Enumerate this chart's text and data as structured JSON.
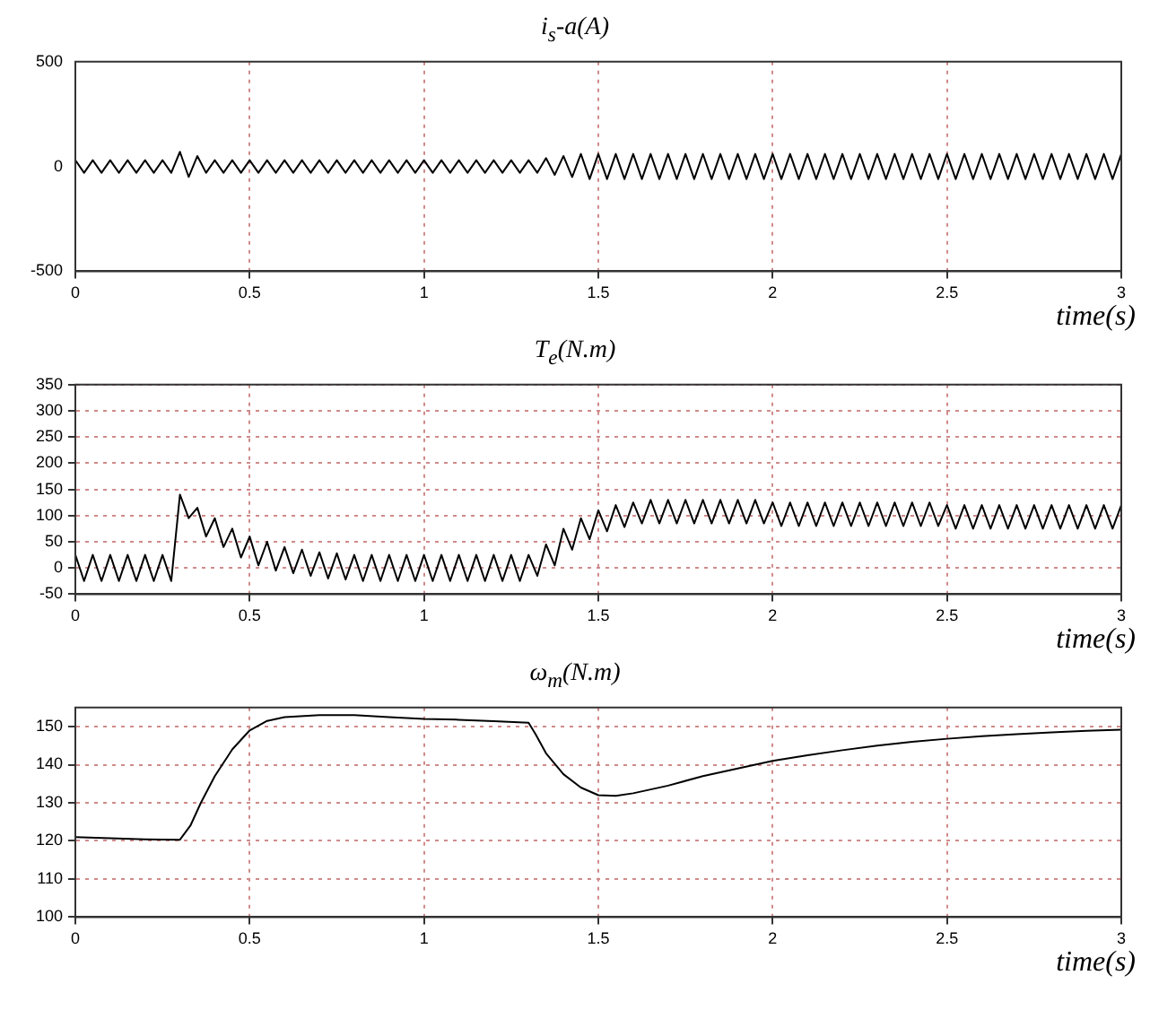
{
  "chart_data": [
    {
      "type": "line",
      "title": "i$_{s}$-a(A)",
      "xlabel": "time(s)",
      "marker": "none",
      "grid": "x",
      "xlim": [
        0,
        3
      ],
      "ylim": [
        -500,
        500
      ],
      "xticks": [
        0,
        0.5,
        1,
        1.5,
        2,
        2.5,
        3
      ],
      "yticks": [
        -500,
        0,
        500
      ],
      "x": [
        0,
        0.025,
        0.05,
        0.075,
        0.1,
        0.125,
        0.15,
        0.175,
        0.2,
        0.225,
        0.25,
        0.275,
        0.3,
        0.325,
        0.35,
        0.375,
        0.4,
        0.425,
        0.45,
        0.475,
        0.5,
        0.525,
        0.55,
        0.575,
        0.6,
        0.625,
        0.65,
        0.675,
        0.7,
        0.725,
        0.75,
        0.775,
        0.8,
        0.825,
        0.85,
        0.875,
        0.9,
        0.925,
        0.95,
        0.975,
        1,
        1.025,
        1.05,
        1.075,
        1.1,
        1.125,
        1.15,
        1.175,
        1.2,
        1.225,
        1.25,
        1.275,
        1.3,
        1.325,
        1.35,
        1.375,
        1.4,
        1.425,
        1.45,
        1.475,
        1.5,
        1.525,
        1.55,
        1.575,
        1.6,
        1.625,
        1.65,
        1.675,
        1.7,
        1.725,
        1.75,
        1.775,
        1.8,
        1.825,
        1.85,
        1.875,
        1.9,
        1.925,
        1.95,
        1.975,
        2,
        2.025,
        2.05,
        2.075,
        2.1,
        2.125,
        2.15,
        2.175,
        2.2,
        2.225,
        2.25,
        2.275,
        2.3,
        2.325,
        2.35,
        2.375,
        2.4,
        2.425,
        2.45,
        2.475,
        2.5,
        2.525,
        2.55,
        2.575,
        2.6,
        2.625,
        2.65,
        2.675,
        2.7,
        2.725,
        2.75,
        2.775,
        2.8,
        2.825,
        2.85,
        2.875,
        2.9,
        2.925,
        2.95,
        2.975,
        3
      ],
      "series": [
        {
          "color": "#000000",
          "values": [
            30,
            -30,
            30,
            -30,
            30,
            -30,
            30,
            -30,
            30,
            -30,
            30,
            -30,
            70,
            -50,
            50,
            -30,
            30,
            -30,
            30,
            -30,
            30,
            -30,
            30,
            -30,
            30,
            -30,
            30,
            -30,
            30,
            -30,
            30,
            -30,
            30,
            -30,
            30,
            -30,
            30,
            -30,
            30,
            -30,
            30,
            -30,
            30,
            -30,
            30,
            -30,
            30,
            -30,
            30,
            -30,
            30,
            -30,
            30,
            -30,
            40,
            -40,
            50,
            -50,
            60,
            -60,
            60,
            -60,
            60,
            -60,
            60,
            -60,
            60,
            -60,
            60,
            -60,
            60,
            -60,
            60,
            -60,
            60,
            -60,
            60,
            -60,
            60,
            -60,
            60,
            -60,
            60,
            -60,
            60,
            -60,
            60,
            -60,
            60,
            -60,
            60,
            -60,
            60,
            -60,
            60,
            -60,
            60,
            -60,
            60,
            -60,
            60,
            -60,
            60,
            -60,
            60,
            -60,
            60,
            -60,
            60,
            -60,
            60,
            -60,
            60,
            -60,
            60,
            -60,
            60,
            -60,
            60,
            -60,
            60
          ]
        }
      ]
    },
    {
      "type": "line",
      "title": "T$_{e}$(N.m)",
      "xlabel": "time(s)",
      "marker": "none",
      "grid": true,
      "xlim": [
        0,
        3
      ],
      "ylim": [
        -50,
        350
      ],
      "xticks": [
        0,
        0.5,
        1,
        1.5,
        2,
        2.5,
        3
      ],
      "yticks": [
        -50,
        0,
        50,
        100,
        150,
        200,
        250,
        300,
        350
      ],
      "x": [
        0,
        0.025,
        0.05,
        0.075,
        0.1,
        0.125,
        0.15,
        0.175,
        0.2,
        0.225,
        0.25,
        0.275,
        0.3,
        0.325,
        0.35,
        0.375,
        0.4,
        0.425,
        0.45,
        0.475,
        0.5,
        0.525,
        0.55,
        0.575,
        0.6,
        0.625,
        0.65,
        0.675,
        0.7,
        0.725,
        0.75,
        0.775,
        0.8,
        0.825,
        0.85,
        0.875,
        0.9,
        0.925,
        0.95,
        0.975,
        1,
        1.025,
        1.05,
        1.075,
        1.1,
        1.125,
        1.15,
        1.175,
        1.2,
        1.225,
        1.25,
        1.275,
        1.3,
        1.325,
        1.35,
        1.375,
        1.4,
        1.425,
        1.45,
        1.475,
        1.5,
        1.525,
        1.55,
        1.575,
        1.6,
        1.625,
        1.65,
        1.675,
        1.7,
        1.725,
        1.75,
        1.775,
        1.8,
        1.825,
        1.85,
        1.875,
        1.9,
        1.925,
        1.95,
        1.975,
        2,
        2.025,
        2.05,
        2.075,
        2.1,
        2.125,
        2.15,
        2.175,
        2.2,
        2.225,
        2.25,
        2.275,
        2.3,
        2.325,
        2.35,
        2.375,
        2.4,
        2.425,
        2.45,
        2.475,
        2.5,
        2.525,
        2.55,
        2.575,
        2.6,
        2.625,
        2.65,
        2.675,
        2.7,
        2.725,
        2.75,
        2.775,
        2.8,
        2.825,
        2.85,
        2.875,
        2.9,
        2.925,
        2.95,
        2.975,
        3
      ],
      "series": [
        {
          "color": "#000000",
          "values": [
            25,
            -25,
            25,
            -25,
            25,
            -25,
            25,
            -25,
            25,
            -25,
            25,
            -25,
            140,
            95,
            115,
            60,
            95,
            40,
            75,
            20,
            60,
            5,
            50,
            -5,
            40,
            -10,
            35,
            -15,
            30,
            -20,
            28,
            -22,
            25,
            -25,
            25,
            -25,
            25,
            -25,
            25,
            -25,
            25,
            -25,
            25,
            -25,
            25,
            -25,
            25,
            -25,
            25,
            -25,
            25,
            -25,
            25,
            -15,
            45,
            5,
            75,
            35,
            95,
            55,
            110,
            70,
            120,
            78,
            125,
            85,
            130,
            85,
            130,
            85,
            130,
            85,
            130,
            85,
            130,
            85,
            130,
            85,
            130,
            85,
            125,
            80,
            125,
            80,
            125,
            80,
            125,
            80,
            125,
            80,
            125,
            80,
            125,
            80,
            125,
            80,
            125,
            80,
            125,
            80,
            120,
            75,
            120,
            75,
            120,
            75,
            120,
            75,
            120,
            75,
            120,
            75,
            120,
            75,
            120,
            75,
            120,
            75,
            120,
            75,
            120
          ]
        }
      ]
    },
    {
      "type": "line",
      "title": "ω$_{m}$(N.m)",
      "xlabel": "time(s)",
      "marker": "none",
      "grid": true,
      "xlim": [
        0,
        3
      ],
      "ylim": [
        100,
        155
      ],
      "xticks": [
        0,
        0.5,
        1,
        1.5,
        2,
        2.5,
        3
      ],
      "yticks": [
        100,
        110,
        120,
        130,
        140,
        150
      ],
      "x": [
        0,
        0.1,
        0.2,
        0.3,
        0.33,
        0.36,
        0.4,
        0.45,
        0.5,
        0.55,
        0.6,
        0.7,
        0.8,
        0.9,
        1,
        1.1,
        1.2,
        1.3,
        1.32,
        1.35,
        1.4,
        1.45,
        1.5,
        1.55,
        1.6,
        1.7,
        1.8,
        1.9,
        2,
        2.1,
        2.2,
        2.3,
        2.4,
        2.5,
        2.6,
        2.7,
        2.8,
        2.9,
        3
      ],
      "series": [
        {
          "color": "#000000",
          "values": [
            121,
            120.7,
            120.4,
            120.3,
            124,
            130,
            137,
            144,
            149,
            151.5,
            152.5,
            153,
            153,
            152.5,
            152,
            151.8,
            151.4,
            151,
            148,
            143,
            137.5,
            134,
            132,
            131.8,
            132.5,
            134.5,
            137,
            139,
            141,
            142.5,
            143.8,
            145,
            146,
            146.8,
            147.5,
            148,
            148.5,
            148.9,
            149.2
          ]
        }
      ]
    }
  ]
}
